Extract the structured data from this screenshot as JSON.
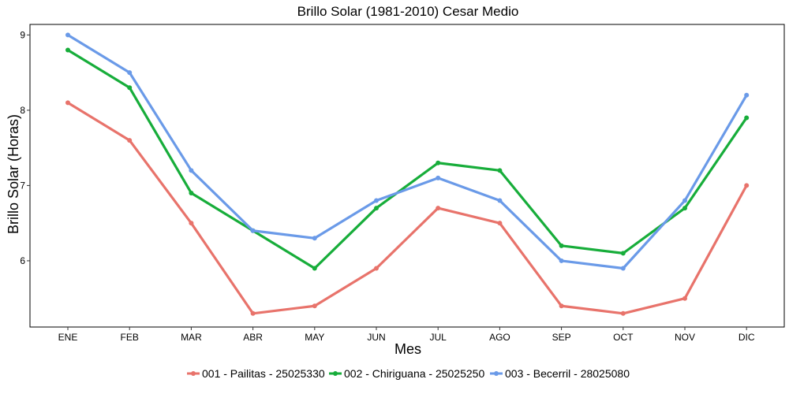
{
  "chart_data": {
    "type": "line",
    "title": "Brillo Solar (1981-2010)  Cesar Medio",
    "xlabel": "Mes",
    "ylabel": "Brillo Solar (Horas)",
    "categories": [
      "ENE",
      "FEB",
      "MAR",
      "ABR",
      "MAY",
      "JUN",
      "JUL",
      "AGO",
      "SEP",
      "OCT",
      "NOV",
      "DIC"
    ],
    "yticks": [
      6,
      7,
      8,
      9
    ],
    "ylim": [
      5.12,
      9.14
    ],
    "series": [
      {
        "name": "001 - Pailitas - 25025330",
        "color": "#e8736b",
        "values": [
          8.1,
          7.6,
          6.5,
          5.3,
          5.4,
          5.9,
          6.7,
          6.5,
          5.4,
          5.3,
          5.5,
          7.0
        ]
      },
      {
        "name": "002 - Chiriguana - 25025250",
        "color": "#17ad3a",
        "values": [
          8.8,
          8.3,
          6.9,
          6.4,
          5.9,
          6.7,
          7.3,
          7.2,
          6.2,
          6.1,
          6.7,
          7.9
        ]
      },
      {
        "name": "003 - Becerril - 28025080",
        "color": "#6a9ae8",
        "values": [
          9.0,
          8.5,
          7.2,
          6.4,
          6.3,
          6.8,
          7.1,
          6.8,
          6.0,
          5.9,
          6.8,
          8.2
        ]
      }
    ],
    "grid": false,
    "legend": "bottom"
  }
}
